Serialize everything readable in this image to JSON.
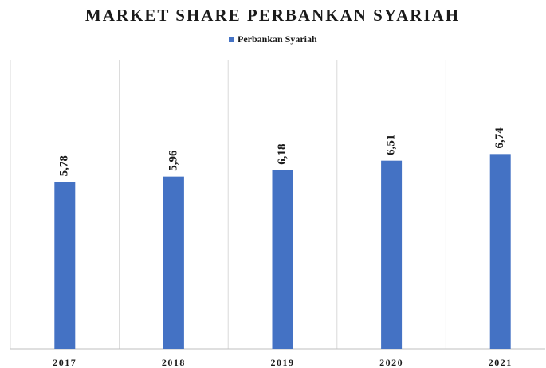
{
  "chart_data": {
    "type": "bar",
    "title": "MARKET SHARE PERBANKAN SYARIAH",
    "categories": [
      "2017",
      "2018",
      "2019",
      "2020",
      "2021"
    ],
    "series": [
      {
        "name": "Perbankan Syariah",
        "color": "#4472c4",
        "values": [
          5.78,
          5.96,
          6.18,
          6.51,
          6.74
        ],
        "value_labels": [
          "5,78",
          "5,96",
          "6,18",
          "6,51",
          "6,74"
        ]
      }
    ],
    "ylim": [
      0,
      10
    ]
  }
}
